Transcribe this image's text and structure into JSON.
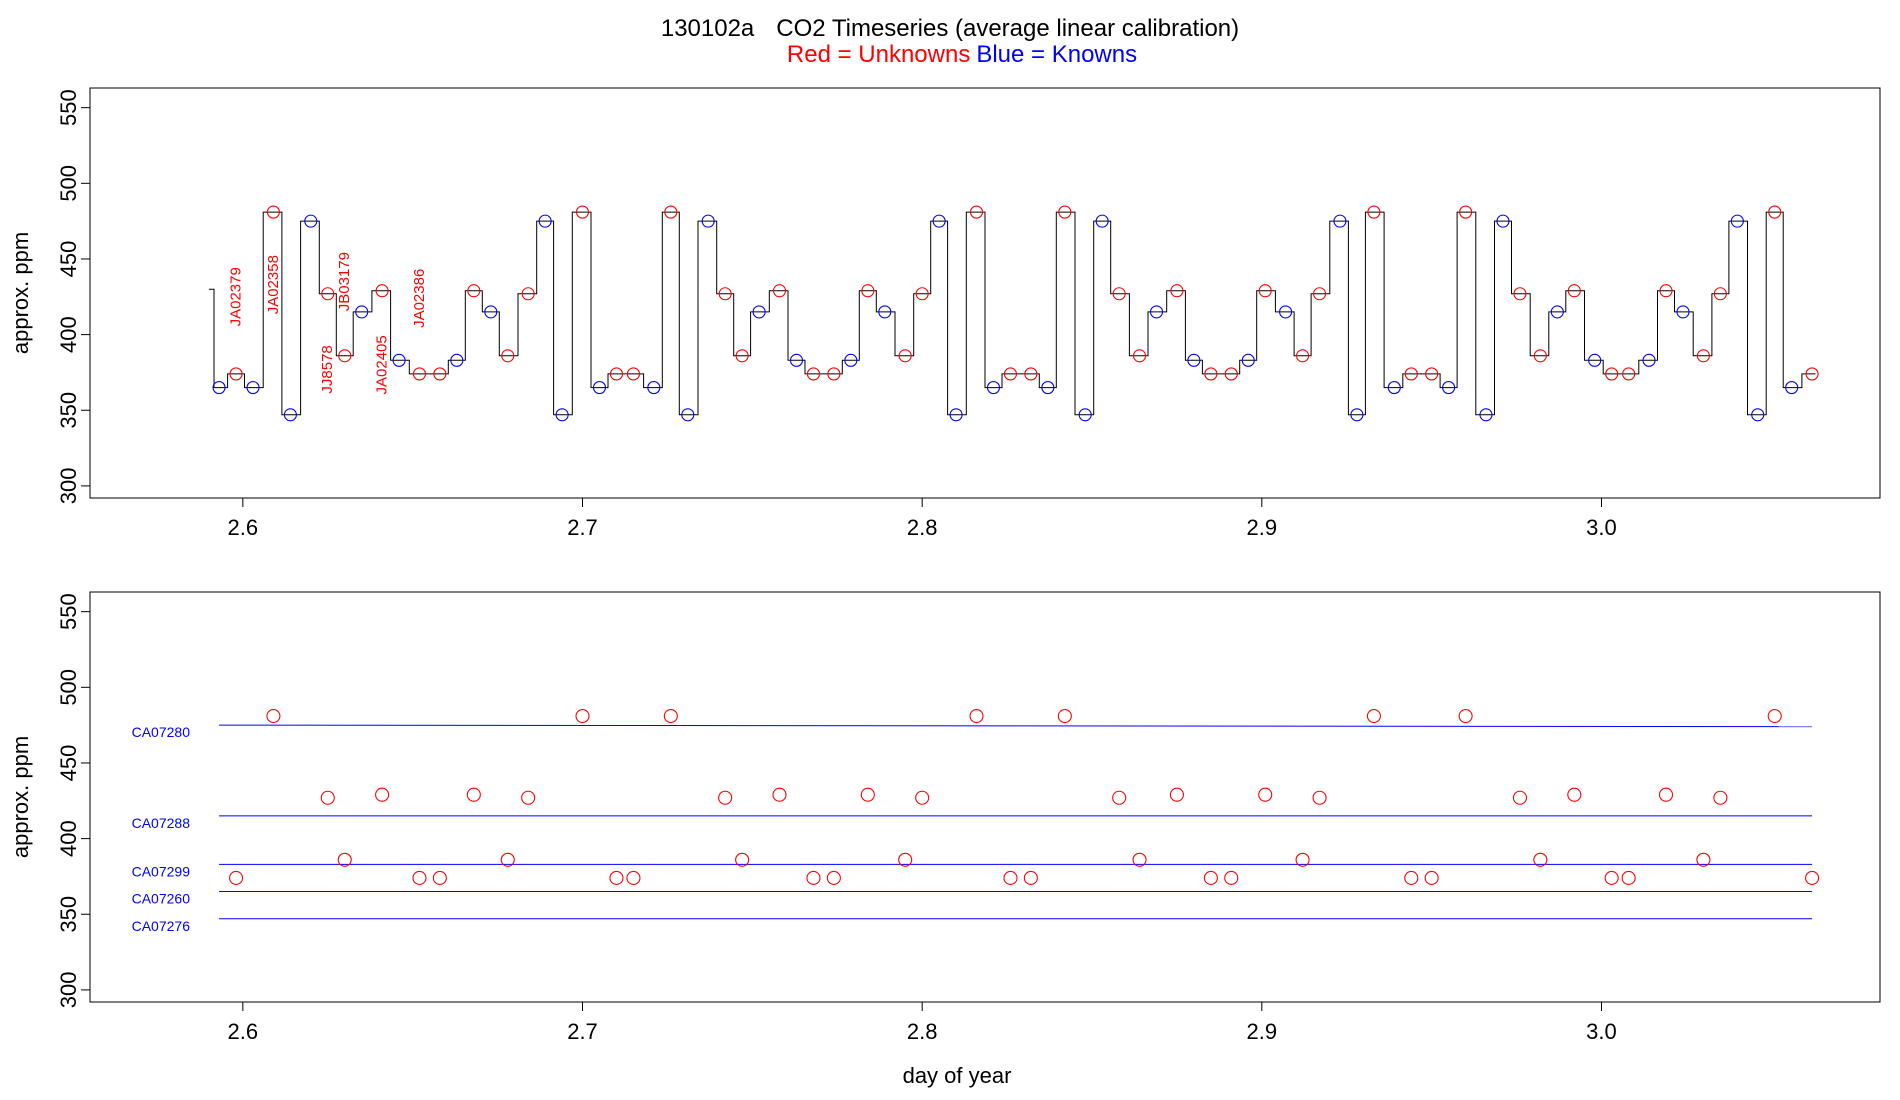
{
  "title": {
    "prefix": "130102a",
    "main": "CO2 Timeseries (average linear calibration)",
    "red_label": "Red = Unknowns",
    "blue_label": "Blue = Knowns",
    "colors": {
      "unknown": "#ff0000",
      "known": "#0000ff",
      "trace": "#000000"
    }
  },
  "chart_data": [
    {
      "type": "line",
      "panel": "timeseries",
      "ylabel": "approx. ppm",
      "xlabel": "",
      "xlim": [
        2.555,
        3.082
      ],
      "ylim": [
        292,
        563
      ],
      "xticks": [
        "2.6",
        "2.7",
        "2.8",
        "2.9",
        "3.0"
      ],
      "yticks": [
        "300",
        "350",
        "400",
        "450",
        "500",
        "550"
      ],
      "trace_levels": [
        [
          2.59,
          430
        ],
        [
          2.593,
          365
        ],
        [
          2.598,
          374
        ],
        [
          2.603,
          365
        ],
        [
          2.609,
          481
        ],
        [
          2.614,
          347
        ],
        [
          2.62,
          475
        ],
        [
          2.625,
          427
        ],
        [
          2.63,
          386
        ],
        [
          2.635,
          415
        ],
        [
          2.641,
          429
        ],
        [
          2.646,
          383
        ],
        [
          2.652,
          374
        ],
        [
          2.658,
          374
        ],
        [
          2.663,
          383
        ],
        [
          2.668,
          429
        ],
        [
          2.673,
          415
        ],
        [
          2.678,
          386
        ],
        [
          2.684,
          427
        ],
        [
          2.689,
          475
        ],
        [
          2.694,
          347
        ],
        [
          2.7,
          481
        ],
        [
          2.705,
          365
        ],
        [
          2.71,
          374
        ],
        [
          2.715,
          374
        ],
        [
          2.721,
          365
        ],
        [
          2.726,
          481
        ],
        [
          2.731,
          347
        ],
        [
          2.737,
          475
        ],
        [
          2.742,
          427
        ],
        [
          2.747,
          386
        ],
        [
          2.752,
          415
        ],
        [
          2.758,
          429
        ],
        [
          2.763,
          383
        ],
        [
          2.768,
          374
        ],
        [
          2.774,
          374
        ],
        [
          2.779,
          383
        ],
        [
          2.784,
          429
        ],
        [
          2.789,
          415
        ],
        [
          2.795,
          386
        ],
        [
          2.8,
          427
        ],
        [
          2.805,
          475
        ],
        [
          2.81,
          347
        ],
        [
          2.816,
          481
        ],
        [
          2.821,
          365
        ],
        [
          2.826,
          374
        ],
        [
          2.832,
          374
        ],
        [
          2.837,
          365
        ],
        [
          2.842,
          481
        ],
        [
          2.848,
          347
        ],
        [
          2.853,
          475
        ],
        [
          2.858,
          427
        ],
        [
          2.864,
          386
        ],
        [
          2.869,
          415
        ],
        [
          2.875,
          429
        ],
        [
          2.88,
          383
        ],
        [
          2.885,
          374
        ],
        [
          2.891,
          374
        ],
        [
          2.896,
          383
        ],
        [
          2.901,
          429
        ],
        [
          2.907,
          415
        ],
        [
          2.912,
          386
        ],
        [
          2.917,
          427
        ],
        [
          2.923,
          475
        ],
        [
          2.928,
          347
        ],
        [
          2.933,
          481
        ],
        [
          2.939,
          365
        ],
        [
          2.944,
          374
        ],
        [
          2.95,
          374
        ],
        [
          2.955,
          365
        ],
        [
          2.96,
          481
        ],
        [
          2.966,
          347
        ],
        [
          2.971,
          475
        ],
        [
          2.976,
          427
        ],
        [
          2.982,
          386
        ],
        [
          2.987,
          415
        ],
        [
          2.992,
          429
        ],
        [
          2.998,
          383
        ],
        [
          3.003,
          374
        ],
        [
          3.008,
          374
        ],
        [
          3.014,
          383
        ],
        [
          3.019,
          429
        ],
        [
          3.024,
          415
        ],
        [
          3.03,
          386
        ],
        [
          3.035,
          427
        ],
        [
          3.04,
          475
        ],
        [
          3.046,
          347
        ],
        [
          3.051,
          481
        ],
        [
          3.056,
          365
        ],
        [
          3.062,
          374
        ]
      ],
      "knowns": [
        [
          2.593,
          365
        ],
        [
          2.603,
          365
        ],
        [
          2.614,
          347
        ],
        [
          2.62,
          475
        ],
        [
          2.635,
          415
        ],
        [
          2.646,
          383
        ],
        [
          2.663,
          383
        ],
        [
          2.673,
          415
        ],
        [
          2.689,
          475
        ],
        [
          2.694,
          347
        ],
        [
          2.705,
          365
        ],
        [
          2.721,
          365
        ],
        [
          2.731,
          347
        ],
        [
          2.737,
          475
        ],
        [
          2.752,
          415
        ],
        [
          2.763,
          383
        ],
        [
          2.779,
          383
        ],
        [
          2.789,
          415
        ],
        [
          2.805,
          475
        ],
        [
          2.81,
          347
        ],
        [
          2.821,
          365
        ],
        [
          2.837,
          365
        ],
        [
          2.848,
          347
        ],
        [
          2.853,
          475
        ],
        [
          2.869,
          415
        ],
        [
          2.88,
          383
        ],
        [
          2.896,
          383
        ],
        [
          2.907,
          415
        ],
        [
          2.923,
          475
        ],
        [
          2.928,
          347
        ],
        [
          2.939,
          365
        ],
        [
          2.955,
          365
        ],
        [
          2.966,
          347
        ],
        [
          2.971,
          475
        ],
        [
          2.987,
          415
        ],
        [
          2.998,
          383
        ],
        [
          3.014,
          383
        ],
        [
          3.024,
          415
        ],
        [
          3.04,
          475
        ],
        [
          3.046,
          347
        ],
        [
          3.056,
          365
        ]
      ],
      "unknowns": [
        [
          2.598,
          374
        ],
        [
          2.609,
          481
        ],
        [
          2.625,
          427
        ],
        [
          2.63,
          386
        ],
        [
          2.641,
          429
        ],
        [
          2.652,
          374
        ],
        [
          2.658,
          374
        ],
        [
          2.668,
          429
        ],
        [
          2.678,
          386
        ],
        [
          2.684,
          427
        ],
        [
          2.7,
          481
        ],
        [
          2.71,
          374
        ],
        [
          2.715,
          374
        ],
        [
          2.726,
          481
        ],
        [
          2.742,
          427
        ],
        [
          2.747,
          386
        ],
        [
          2.758,
          429
        ],
        [
          2.768,
          374
        ],
        [
          2.774,
          374
        ],
        [
          2.784,
          429
        ],
        [
          2.795,
          386
        ],
        [
          2.8,
          427
        ],
        [
          2.816,
          481
        ],
        [
          2.826,
          374
        ],
        [
          2.832,
          374
        ],
        [
          2.842,
          481
        ],
        [
          2.858,
          427
        ],
        [
          2.864,
          386
        ],
        [
          2.875,
          429
        ],
        [
          2.885,
          374
        ],
        [
          2.891,
          374
        ],
        [
          2.901,
          429
        ],
        [
          2.912,
          386
        ],
        [
          2.917,
          427
        ],
        [
          2.933,
          481
        ],
        [
          2.944,
          374
        ],
        [
          2.95,
          374
        ],
        [
          2.96,
          481
        ],
        [
          2.976,
          427
        ],
        [
          2.982,
          386
        ],
        [
          2.992,
          429
        ],
        [
          3.003,
          374
        ],
        [
          3.008,
          374
        ],
        [
          3.019,
          429
        ],
        [
          3.03,
          386
        ],
        [
          3.035,
          427
        ],
        [
          3.051,
          481
        ],
        [
          3.062,
          374
        ]
      ],
      "sample_labels": [
        {
          "text": "JA02379",
          "x": 2.598,
          "y_mid": 425
        },
        {
          "text": "JA02358",
          "x": 2.609,
          "y_mid": 433
        },
        {
          "text": "JJ8578",
          "x": 2.625,
          "y_mid": 377
        },
        {
          "text": "JB03179",
          "x": 2.63,
          "y_mid": 435
        },
        {
          "text": "JA02405",
          "x": 2.641,
          "y_mid": 380
        },
        {
          "text": "JA02386",
          "x": 2.652,
          "y_mid": 424
        }
      ]
    },
    {
      "type": "scatter",
      "panel": "calibration",
      "ylabel": "approx. ppm",
      "xlabel": "day of year",
      "xlim": [
        2.555,
        3.082
      ],
      "ylim": [
        292,
        563
      ],
      "xticks": [
        "2.6",
        "2.7",
        "2.8",
        "2.9",
        "3.0"
      ],
      "yticks": [
        "300",
        "350",
        "400",
        "450",
        "500",
        "550"
      ],
      "calibration_lines": [
        {
          "name": "CA07280",
          "y_start": 475,
          "y_end": 474
        },
        {
          "name": "CA07288",
          "y_start": 415,
          "y_end": 415
        },
        {
          "name": "CA07299",
          "y_start": 383,
          "y_end": 383
        },
        {
          "name": "CA07260",
          "y_start": 365,
          "y_end": 365
        },
        {
          "name": "CA07276",
          "y_start": 347,
          "y_end": 347
        }
      ],
      "line_x_range": [
        2.593,
        3.062
      ],
      "unknowns": [
        [
          2.598,
          374
        ],
        [
          2.609,
          481
        ],
        [
          2.625,
          427
        ],
        [
          2.63,
          386
        ],
        [
          2.641,
          429
        ],
        [
          2.652,
          374
        ],
        [
          2.658,
          374
        ],
        [
          2.668,
          429
        ],
        [
          2.678,
          386
        ],
        [
          2.684,
          427
        ],
        [
          2.7,
          481
        ],
        [
          2.71,
          374
        ],
        [
          2.715,
          374
        ],
        [
          2.726,
          481
        ],
        [
          2.742,
          427
        ],
        [
          2.747,
          386
        ],
        [
          2.758,
          429
        ],
        [
          2.768,
          374
        ],
        [
          2.774,
          374
        ],
        [
          2.784,
          429
        ],
        [
          2.795,
          386
        ],
        [
          2.8,
          427
        ],
        [
          2.816,
          481
        ],
        [
          2.826,
          374
        ],
        [
          2.832,
          374
        ],
        [
          2.842,
          481
        ],
        [
          2.858,
          427
        ],
        [
          2.864,
          386
        ],
        [
          2.875,
          429
        ],
        [
          2.885,
          374
        ],
        [
          2.891,
          374
        ],
        [
          2.901,
          429
        ],
        [
          2.912,
          386
        ],
        [
          2.917,
          427
        ],
        [
          2.933,
          481
        ],
        [
          2.944,
          374
        ],
        [
          2.95,
          374
        ],
        [
          2.96,
          481
        ],
        [
          2.976,
          427
        ],
        [
          2.982,
          386
        ],
        [
          2.992,
          429
        ],
        [
          3.003,
          374
        ],
        [
          3.008,
          374
        ],
        [
          3.019,
          429
        ],
        [
          3.03,
          386
        ],
        [
          3.035,
          427
        ],
        [
          3.051,
          481
        ],
        [
          3.062,
          374
        ]
      ]
    }
  ]
}
